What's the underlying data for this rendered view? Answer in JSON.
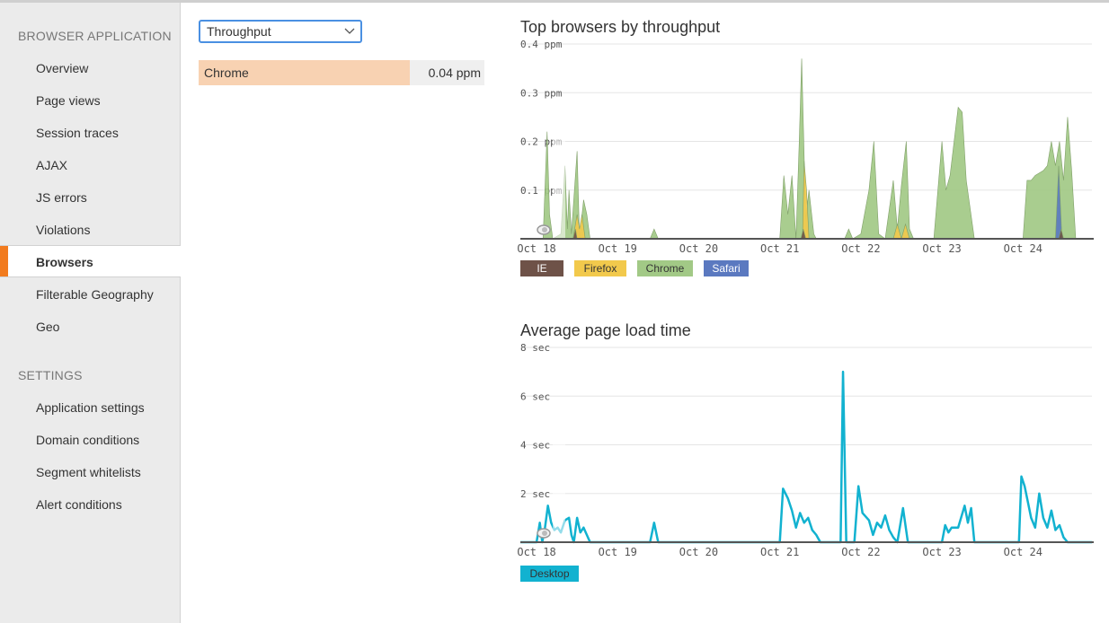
{
  "sidebar": {
    "section_browser": "BROWSER APPLICATION",
    "items": [
      {
        "label": "Overview"
      },
      {
        "label": "Page views"
      },
      {
        "label": "Session traces"
      },
      {
        "label": "AJAX"
      },
      {
        "label": "JS errors"
      },
      {
        "label": "Violations"
      },
      {
        "label": "Browsers",
        "active": true
      },
      {
        "label": "Filterable Geography"
      },
      {
        "label": "Geo"
      }
    ],
    "section_settings": "SETTINGS",
    "settings_items": [
      {
        "label": "Application settings"
      },
      {
        "label": "Domain conditions"
      },
      {
        "label": "Segment whitelists"
      },
      {
        "label": "Alert conditions"
      }
    ]
  },
  "metric_select": {
    "value": "Throughput"
  },
  "browser_row": {
    "label": "Chrome",
    "value": "0.04 ppm",
    "fraction": 0.74
  },
  "chart_data": [
    {
      "type": "area",
      "title": "Top browsers by throughput",
      "y_ticks": [
        "0.4 ppm",
        "0.3 ppm",
        "0.2 ppm",
        "0.1 ppm"
      ],
      "ylim": [
        0,
        0.4
      ],
      "x_ticks": [
        "Oct 18",
        "Oct 19",
        "Oct 20",
        "Oct 21",
        "Oct 22",
        "Oct 23",
        "Oct 24"
      ],
      "xlim": [
        0,
        7.05
      ],
      "series": [
        {
          "name": "Chrome",
          "color": "#a2c986",
          "points": [
            [
              0.28,
              0
            ],
            [
              0.33,
              0.22
            ],
            [
              0.36,
              0.05
            ],
            [
              0.4,
              0
            ],
            [
              0.5,
              0.01
            ],
            [
              0.55,
              0.15
            ],
            [
              0.58,
              0.02
            ],
            [
              0.6,
              0.1
            ],
            [
              0.63,
              0.01
            ],
            [
              0.7,
              0.18
            ],
            [
              0.73,
              0
            ],
            [
              0.78,
              0.08
            ],
            [
              0.82,
              0.05
            ],
            [
              0.86,
              0
            ],
            [
              0.88,
              0
            ],
            [
              1.6,
              0
            ],
            [
              1.65,
              0.02
            ],
            [
              1.7,
              0
            ],
            [
              3.2,
              0
            ],
            [
              3.25,
              0.13
            ],
            [
              3.3,
              0.05
            ],
            [
              3.35,
              0.13
            ],
            [
              3.4,
              0
            ],
            [
              3.44,
              0.2
            ],
            [
              3.47,
              0.37
            ],
            [
              3.52,
              0.04
            ],
            [
              3.56,
              0.1
            ],
            [
              3.62,
              0.01
            ],
            [
              3.65,
              0
            ],
            [
              4.0,
              0
            ],
            [
              4.05,
              0.02
            ],
            [
              4.1,
              0
            ],
            [
              4.2,
              0.01
            ],
            [
              4.3,
              0.1
            ],
            [
              4.36,
              0.2
            ],
            [
              4.42,
              0.01
            ],
            [
              4.5,
              0
            ],
            [
              4.6,
              0.12
            ],
            [
              4.65,
              0.02
            ],
            [
              4.7,
              0.11
            ],
            [
              4.76,
              0.2
            ],
            [
              4.8,
              0.02
            ],
            [
              4.85,
              0
            ],
            [
              5.1,
              0
            ],
            [
              5.15,
              0.1
            ],
            [
              5.2,
              0.2
            ],
            [
              5.25,
              0.1
            ],
            [
              5.3,
              0.13
            ],
            [
              5.4,
              0.27
            ],
            [
              5.45,
              0.26
            ],
            [
              5.5,
              0.12
            ],
            [
              5.6,
              0
            ],
            [
              6.2,
              0
            ],
            [
              6.25,
              0.12
            ],
            [
              6.3,
              0.12
            ],
            [
              6.35,
              0.13
            ],
            [
              6.45,
              0.14
            ],
            [
              6.5,
              0.15
            ],
            [
              6.55,
              0.2
            ],
            [
              6.6,
              0.15
            ],
            [
              6.65,
              0.2
            ],
            [
              6.7,
              0.12
            ],
            [
              6.75,
              0.25
            ],
            [
              6.8,
              0.14
            ],
            [
              6.85,
              0
            ],
            [
              7.05,
              0
            ]
          ]
        },
        {
          "name": "Firefox",
          "color": "#f2c94c",
          "points": [
            [
              0.65,
              0
            ],
            [
              0.7,
              0.05
            ],
            [
              0.73,
              0.02
            ],
            [
              0.76,
              0.05
            ],
            [
              0.8,
              0
            ],
            [
              3.48,
              0
            ],
            [
              3.5,
              0.16
            ],
            [
              3.53,
              0.1
            ],
            [
              3.56,
              0
            ],
            [
              4.6,
              0
            ],
            [
              4.65,
              0.03
            ],
            [
              4.7,
              0
            ],
            [
              4.75,
              0.03
            ],
            [
              4.8,
              0
            ]
          ]
        },
        {
          "name": "Safari",
          "color": "#5b79c0",
          "points": [
            [
              6.6,
              0
            ],
            [
              6.64,
              0.15
            ],
            [
              6.68,
              0
            ]
          ]
        },
        {
          "name": "IE",
          "color": "#6e5248",
          "points": [
            [
              0.65,
              0
            ],
            [
              0.68,
              0.02
            ],
            [
              0.7,
              0
            ],
            [
              3.46,
              0
            ],
            [
              3.49,
              0.02
            ],
            [
              3.52,
              0
            ],
            [
              6.64,
              0
            ],
            [
              6.67,
              0.02
            ],
            [
              6.7,
              0
            ]
          ]
        }
      ],
      "legend": [
        "IE",
        "Firefox",
        "Chrome",
        "Safari"
      ]
    },
    {
      "type": "line",
      "title": "Average page load time",
      "y_ticks": [
        "8 sec",
        "6 sec",
        "4 sec",
        "2 sec"
      ],
      "ylim": [
        0,
        8
      ],
      "x_ticks": [
        "Oct 18",
        "Oct 19",
        "Oct 20",
        "Oct 21",
        "Oct 22",
        "Oct 23",
        "Oct 24"
      ],
      "xlim": [
        0,
        7.05
      ],
      "series": [
        {
          "name": "Desktop",
          "color": "#12b2d0",
          "points": [
            [
              0,
              0
            ],
            [
              0.2,
              0
            ],
            [
              0.24,
              0.8
            ],
            [
              0.27,
              0
            ],
            [
              0.3,
              0.5
            ],
            [
              0.34,
              1.5
            ],
            [
              0.38,
              0.8
            ],
            [
              0.42,
              0.5
            ],
            [
              0.46,
              0.6
            ],
            [
              0.5,
              0.4
            ],
            [
              0.55,
              0.9
            ],
            [
              0.6,
              1.0
            ],
            [
              0.63,
              0.3
            ],
            [
              0.66,
              0
            ],
            [
              0.7,
              1.0
            ],
            [
              0.74,
              0.4
            ],
            [
              0.78,
              0.6
            ],
            [
              0.82,
              0.3
            ],
            [
              0.86,
              0
            ],
            [
              1.6,
              0
            ],
            [
              1.65,
              0.8
            ],
            [
              1.7,
              0
            ],
            [
              3.2,
              0
            ],
            [
              3.24,
              2.2
            ],
            [
              3.3,
              1.8
            ],
            [
              3.35,
              1.3
            ],
            [
              3.4,
              0.6
            ],
            [
              3.45,
              1.2
            ],
            [
              3.5,
              0.8
            ],
            [
              3.55,
              1.0
            ],
            [
              3.6,
              0.5
            ],
            [
              3.65,
              0.3
            ],
            [
              3.7,
              0
            ],
            [
              3.95,
              0
            ],
            [
              3.98,
              7.0
            ],
            [
              4.02,
              0
            ],
            [
              4.12,
              0
            ],
            [
              4.17,
              2.3
            ],
            [
              4.22,
              1.2
            ],
            [
              4.3,
              0.9
            ],
            [
              4.35,
              0.3
            ],
            [
              4.4,
              0.8
            ],
            [
              4.45,
              0.6
            ],
            [
              4.5,
              1.1
            ],
            [
              4.55,
              0.5
            ],
            [
              4.6,
              0.2
            ],
            [
              4.65,
              0
            ],
            [
              4.72,
              1.4
            ],
            [
              4.78,
              0
            ],
            [
              5.2,
              0
            ],
            [
              5.24,
              0.7
            ],
            [
              5.28,
              0.4
            ],
            [
              5.32,
              0.6
            ],
            [
              5.4,
              0.6
            ],
            [
              5.48,
              1.5
            ],
            [
              5.52,
              0.8
            ],
            [
              5.56,
              1.4
            ],
            [
              5.6,
              0
            ],
            [
              6.15,
              0
            ],
            [
              6.18,
              2.7
            ],
            [
              6.22,
              2.3
            ],
            [
              6.3,
              1.0
            ],
            [
              6.35,
              0.6
            ],
            [
              6.4,
              2.0
            ],
            [
              6.45,
              1.0
            ],
            [
              6.5,
              0.6
            ],
            [
              6.55,
              1.3
            ],
            [
              6.6,
              0.5
            ],
            [
              6.65,
              0.7
            ],
            [
              6.7,
              0.2
            ],
            [
              6.75,
              0
            ],
            [
              7.05,
              0
            ]
          ]
        }
      ],
      "legend": [
        "Desktop"
      ]
    }
  ]
}
